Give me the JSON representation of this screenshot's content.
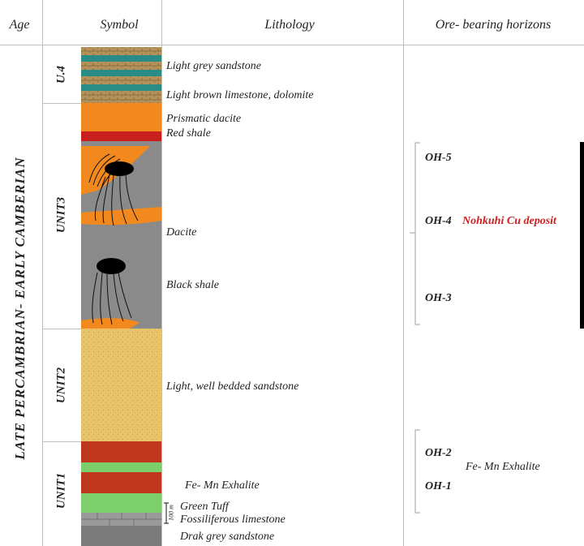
{
  "headers": {
    "age": "Age",
    "symbol": "Symbol",
    "lithology": "Lithology",
    "ore": "Ore- bearing horizons"
  },
  "age_label": "LATE PERCAMBRIAN- EARLY CAMBERIAN",
  "units": [
    "U.4",
    "UNIT3",
    "UNIT2",
    "UNIT1"
  ],
  "lithology": [
    "Light grey sandstone",
    "Light brown limestone, dolomite",
    "Prismatic dacite",
    "Red shale",
    "Dacite",
    "Black shale",
    "Light, well bedded sandstone",
    "Fe- Mn Exhalite",
    "Green Tuff",
    "Fossiliferous limestone",
    "Drak grey sandstone"
  ],
  "scale_label": "100 m",
  "horizons": {
    "oh5": "OH-5",
    "oh4": "OH-4",
    "oh4_note": "Nohkuhi Cu deposit",
    "oh3": "OH-3",
    "oh2": "OH-2",
    "oh1": "OH-1",
    "oh12_note": "Fe- Mn Exhalite"
  },
  "colors": {
    "accent_red": "#c8201f",
    "orange": "#f2891e",
    "grey": "#8a8a8a",
    "sand": "#e9c46a",
    "green": "#7ccf6a",
    "red": "#c0361e",
    "teal": "#2a8c86",
    "tan": "#b4925a",
    "black": "#000000"
  }
}
